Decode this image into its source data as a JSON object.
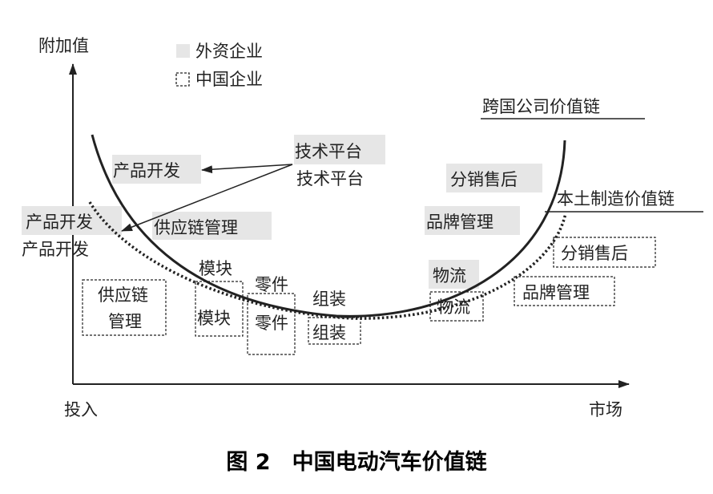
{
  "axes": {
    "y_label": "附加值",
    "x_start_label": "投入",
    "x_end_label": "市场"
  },
  "legend": [
    {
      "label": "外资企业",
      "style": "gray-fill"
    },
    {
      "label": "中国企业",
      "style": "dashed-box"
    }
  ],
  "curves": {
    "foreign": {
      "label": "跨国公司价值链",
      "style": "solid"
    },
    "domestic": {
      "label": "本土制造价值链",
      "style": "dotted"
    }
  },
  "foreign_labels": {
    "tech_platform": "技术平台",
    "product_dev": "产品开发",
    "product_dev_left": "产品开发",
    "supply_chain": "供应链管理",
    "distribution": "分销售后",
    "brand": "品牌管理",
    "logistics": "物流"
  },
  "domestic_labels": {
    "tech_platform": "技术平台",
    "product_dev": "产品开发",
    "supply_chain_line1": "供应链",
    "supply_chain_line2": "管理",
    "module": "模块",
    "parts": "零件",
    "assembly": "组装",
    "logistics": "物流",
    "distribution": "分销售后",
    "brand": "品牌管理"
  },
  "plain_labels": {
    "module": "模块",
    "parts": "零件",
    "assembly": "组装"
  },
  "caption": "图 2　中国电动汽车价值链",
  "colors": {
    "gray_fill": "#e6e6e6",
    "line": "#222222"
  }
}
